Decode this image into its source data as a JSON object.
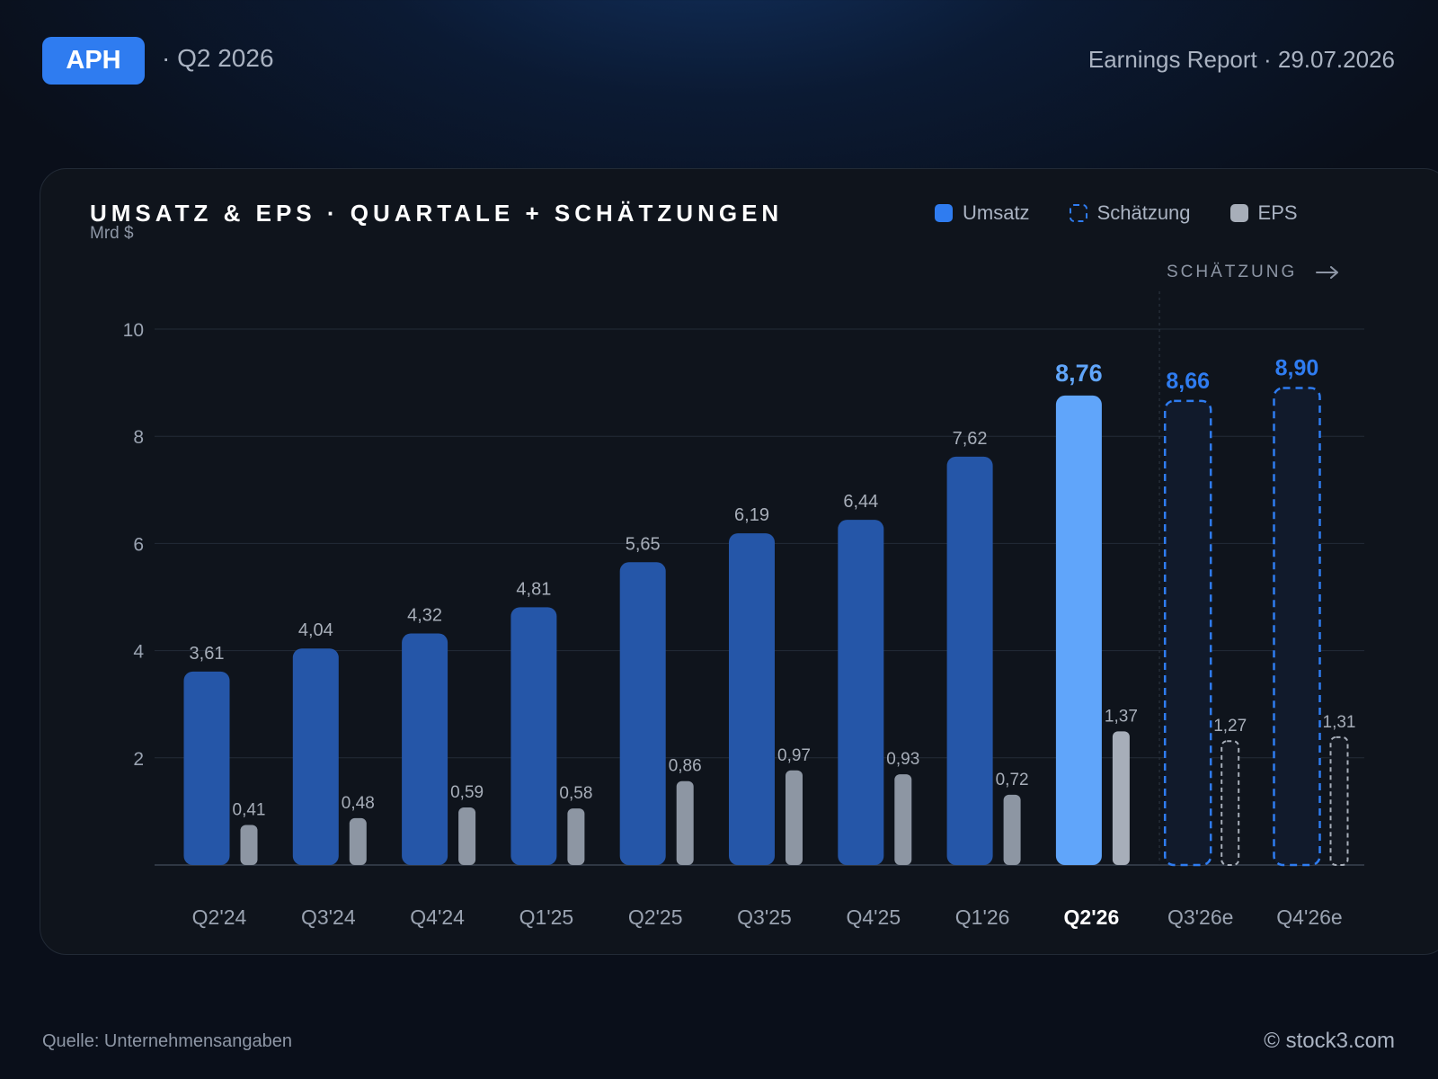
{
  "header": {
    "ticker": "APH",
    "period": "· Q2 2026",
    "report": "Earnings Report · 29.07.2026"
  },
  "card": {
    "title": "UMSATZ & EPS · QUARTALE + SCHÄTZUNGEN",
    "unit": "Mrd $",
    "estimate_marker": "SCHÄTZUNG",
    "legend": [
      {
        "key": "rev",
        "label": "Umsatz"
      },
      {
        "key": "est",
        "label": "Schätzung"
      },
      {
        "key": "eps",
        "label": "EPS"
      }
    ]
  },
  "footer": {
    "source": "Quelle: Unternehmensangaben",
    "copyright": "© stock3.com"
  },
  "colors": {
    "revenue": "#2556a8",
    "current": "#60a5fa",
    "estimate": "#2f7cf0",
    "eps": "#8d96a3",
    "eps_current": "#a7aeb9",
    "eps_estimate": "#a7aeb9",
    "highlight_label": "#60a5fa",
    "estimate_label": "#2f7cf0"
  },
  "chart_data": {
    "type": "bar",
    "categories": [
      "Q2'24",
      "Q3'24",
      "Q4'24",
      "Q1'25",
      "Q2'25",
      "Q3'25",
      "Q4'25",
      "Q1'26",
      "Q2'26",
      "Q3'26e",
      "Q4'26e"
    ],
    "series": [
      {
        "name": "Umsatz",
        "values": [
          3.61,
          4.04,
          4.32,
          4.81,
          5.65,
          6.19,
          6.44,
          7.62,
          8.76,
          8.66,
          8.9
        ],
        "labels": [
          "3,61",
          "4,04",
          "4,32",
          "4,81",
          "5,65",
          "6,19",
          "6,44",
          "7,62",
          "8,76",
          "8,66",
          "8,90"
        ]
      },
      {
        "name": "EPS",
        "values": [
          0.41,
          0.48,
          0.59,
          0.58,
          0.86,
          0.97,
          0.93,
          0.72,
          1.37,
          1.27,
          1.31
        ],
        "labels": [
          "0,41",
          "0,48",
          "0,59",
          "0,58",
          "0,86",
          "0,97",
          "0,93",
          "0,72",
          "1,37",
          "1,27",
          "1,31"
        ]
      }
    ],
    "current_category": "Q2'26",
    "estimate_categories": [
      "Q3'26e",
      "Q4'26e"
    ],
    "ylim": [
      0,
      10
    ],
    "yticks": [
      2,
      4,
      6,
      8,
      10
    ],
    "ylabel": "Mrd $",
    "grid": true,
    "legend": "top-right",
    "title": "UMSATZ & EPS · QUARTALE + SCHÄTZUNGEN"
  }
}
